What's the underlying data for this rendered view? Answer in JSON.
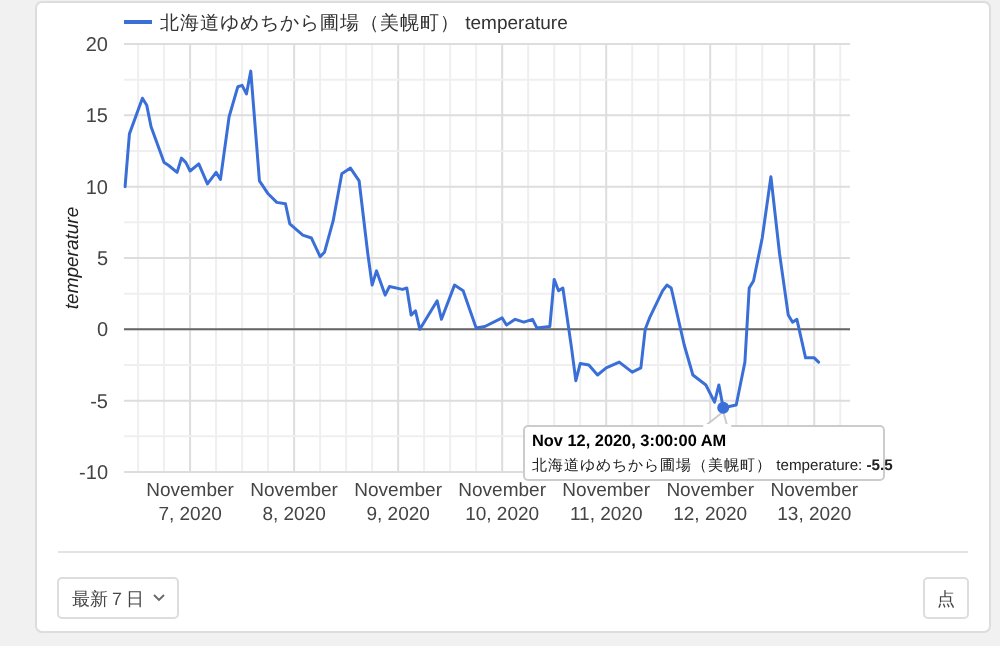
{
  "chart_data": {
    "type": "line",
    "ylabel": "temperature",
    "legend": "top",
    "grid": true,
    "marker": "none",
    "line_style": "solid",
    "xlim": [
      "2020-11-06T08:45",
      "2020-11-13T08:15"
    ],
    "xticks": [
      {
        "value": "2020-11-06T12:00",
        "label": null
      },
      {
        "value": "2020-11-06T18:00",
        "label": null
      },
      {
        "value": "2020-11-07",
        "label": "November 7, 2020"
      },
      {
        "value": "2020-11-07T06:00",
        "label": null
      },
      {
        "value": "2020-11-07T12:00",
        "label": null
      },
      {
        "value": "2020-11-07T18:00",
        "label": null
      },
      {
        "value": "2020-11-08",
        "label": "November 8, 2020"
      },
      {
        "value": "2020-11-08T06:00",
        "label": null
      },
      {
        "value": "2020-11-08T12:00",
        "label": null
      },
      {
        "value": "2020-11-08T18:00",
        "label": null
      },
      {
        "value": "2020-11-09",
        "label": "November 9, 2020"
      },
      {
        "value": "2020-11-09T06:00",
        "label": null
      },
      {
        "value": "2020-11-09T12:00",
        "label": null
      },
      {
        "value": "2020-11-09T18:00",
        "label": null
      },
      {
        "value": "2020-11-10",
        "label": "November 10, 2020"
      },
      {
        "value": "2020-11-10T06:00",
        "label": null
      },
      {
        "value": "2020-11-10T12:00",
        "label": null
      },
      {
        "value": "2020-11-10T18:00",
        "label": null
      },
      {
        "value": "2020-11-11",
        "label": "November 11, 2020"
      },
      {
        "value": "2020-11-11T06:00",
        "label": null
      },
      {
        "value": "2020-11-11T12:00",
        "label": null
      },
      {
        "value": "2020-11-11T18:00",
        "label": null
      },
      {
        "value": "2020-11-12",
        "label": "November 12, 2020"
      },
      {
        "value": "2020-11-12T06:00",
        "label": null
      },
      {
        "value": "2020-11-12T12:00",
        "label": null
      },
      {
        "value": "2020-11-12T18:00",
        "label": null
      },
      {
        "value": "2020-11-13",
        "label": "November 13, 2020"
      },
      {
        "value": "2020-11-13T06:00",
        "label": null
      }
    ],
    "ylim": [
      -10,
      20
    ],
    "yticks": [
      -10,
      {
        "value": -7.5,
        "label": null
      },
      -5,
      {
        "value": -2.5,
        "label": null
      },
      0,
      {
        "value": 2.5,
        "label": null
      },
      5,
      {
        "value": 7.5,
        "label": null
      },
      10,
      {
        "value": 12.5,
        "label": null
      },
      15,
      {
        "value": 17.5,
        "label": null
      },
      20
    ],
    "x": [
      "2020-11-06T09:00",
      "2020-11-06T10:00",
      "2020-11-06T13:00",
      "2020-11-06T14:00",
      "2020-11-06T15:00",
      "2020-11-06T18:00",
      "2020-11-06T19:00",
      "2020-11-06T21:00",
      "2020-11-06T22:00",
      "2020-11-06T23:00",
      "2020-11-07T00:00",
      "2020-11-07T02:00",
      "2020-11-07T04:00",
      "2020-11-07T06:00",
      "2020-11-07T07:00",
      "2020-11-07T09:00",
      "2020-11-07T11:00",
      "2020-11-07T12:00",
      "2020-11-07T13:00",
      "2020-11-07T14:00",
      "2020-11-07T16:00",
      "2020-11-07T18:00",
      "2020-11-07T20:00",
      "2020-11-07T22:00",
      "2020-11-07T23:00",
      "2020-11-08T02:00",
      "2020-11-08T04:00",
      "2020-11-08T06:00",
      "2020-11-08T07:00",
      "2020-11-08T09:00",
      "2020-11-08T11:00",
      "2020-11-08T13:00",
      "2020-11-08T15:00",
      "2020-11-08T17:00",
      "2020-11-08T18:00",
      "2020-11-08T19:00",
      "2020-11-08T21:00",
      "2020-11-08T22:00",
      "2020-11-09T01:00",
      "2020-11-09T02:00",
      "2020-11-09T03:00",
      "2020-11-09T04:00",
      "2020-11-09T05:00",
      "2020-11-09T09:00",
      "2020-11-09T10:00",
      "2020-11-09T13:00",
      "2020-11-09T15:00",
      "2020-11-09T18:00",
      "2020-11-09T20:00",
      "2020-11-10T00:00",
      "2020-11-10T01:00",
      "2020-11-10T03:00",
      "2020-11-10T05:00",
      "2020-11-10T07:00",
      "2020-11-10T08:00",
      "2020-11-10T11:00",
      "2020-11-10T12:00",
      "2020-11-10T13:00",
      "2020-11-10T14:00",
      "2020-11-10T16:00",
      "2020-11-10T17:00",
      "2020-11-10T18:00",
      "2020-11-10T20:00",
      "2020-11-10T22:00",
      "2020-11-11T00:00",
      "2020-11-11T03:00",
      "2020-11-11T06:00",
      "2020-11-11T08:00",
      "2020-11-11T09:00",
      "2020-11-11T10:00",
      "2020-11-11T13:00",
      "2020-11-11T14:00",
      "2020-11-11T15:00",
      "2020-11-11T18:00",
      "2020-11-11T20:00",
      "2020-11-11T23:00",
      "2020-11-12T01:00",
      "2020-11-12T02:00",
      "2020-11-12T03:00",
      "2020-11-12T06:00",
      "2020-11-12T08:00",
      "2020-11-12T09:00",
      "2020-11-12T10:00",
      "2020-11-12T12:00",
      "2020-11-12T14:00",
      "2020-11-12T16:00",
      "2020-11-12T18:00",
      "2020-11-12T19:00",
      "2020-11-12T20:00",
      "2020-11-12T22:00",
      "2020-11-13T00:00",
      "2020-11-13T01:00"
    ],
    "series": [
      {
        "name": "北海道ゆめちから圃場（美幌町） temperature",
        "color": "#3b6fd8",
        "values": [
          10.0,
          13.7,
          16.2,
          15.7,
          14.2,
          11.7,
          11.5,
          11.0,
          12.0,
          11.7,
          11.1,
          11.6,
          10.2,
          11.0,
          10.5,
          14.9,
          17.0,
          17.1,
          16.5,
          18.1,
          10.4,
          9.5,
          8.9,
          8.8,
          7.4,
          6.6,
          6.4,
          5.1,
          5.4,
          7.6,
          10.9,
          11.3,
          10.4,
          5.3,
          3.1,
          4.1,
          2.4,
          3.0,
          2.8,
          2.9,
          1.0,
          1.3,
          0.0,
          2.0,
          0.7,
          3.1,
          2.7,
          0.1,
          0.2,
          0.8,
          0.3,
          0.7,
          0.5,
          0.7,
          0.1,
          0.2,
          3.5,
          2.7,
          2.9,
          -1.3,
          -3.6,
          -2.4,
          -2.5,
          -3.2,
          -2.7,
          -2.3,
          -3.0,
          -2.7,
          0.0,
          0.8,
          2.7,
          3.1,
          2.9,
          -1.1,
          -3.2,
          -3.9,
          -5.1,
          -3.9,
          -5.5,
          -5.3,
          -2.3,
          2.9,
          3.4,
          6.4,
          10.7,
          5.3,
          1.0,
          0.5,
          0.7,
          -2.0,
          -2.0,
          -2.3
        ]
      }
    ],
    "annotations": [
      {
        "text": "Nov 12, 2020, 3:00:00 AM",
        "x": "2020-11-12T03:00",
        "y": -5.5
      },
      "北海道ゆめちから圃場（美幌町） temperature: -5.5",
      "最新７日",
      "点"
    ]
  }
}
